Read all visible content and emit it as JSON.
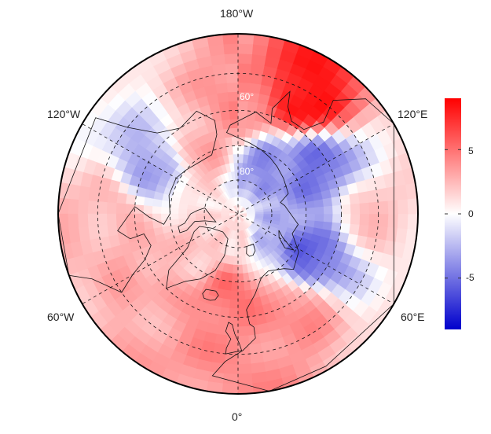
{
  "map": {
    "projection": "north-polar-stereographic",
    "outline_color": "#000000",
    "graticule_style": "dashed",
    "longitude_labels": {
      "top": "180°W",
      "bottom": "0°",
      "upper_left": "120°W",
      "upper_right": "120°E",
      "lower_left": "60°W",
      "lower_right": "60°E"
    },
    "latitude_labels": {
      "lat60": "60°",
      "lat80": "80°"
    }
  },
  "colorbar": {
    "colormap": "bwr",
    "min": -9,
    "max": 9,
    "ticks": [
      "5",
      "0",
      "-5"
    ],
    "tick_values": [
      5,
      0,
      -5
    ],
    "color_low": "#0000cc",
    "color_mid": "#ffffff",
    "color_high": "#ff0000"
  },
  "anomaly_pattern": [
    {
      "lat": 52,
      "lon": 150,
      "value": 8.5
    },
    {
      "lat": 60,
      "lon": 180,
      "value": 4
    },
    {
      "lat": 70,
      "lon": -150,
      "value": 3
    },
    {
      "lat": 64,
      "lon": 120,
      "value": -5
    },
    {
      "lat": 75,
      "lon": 150,
      "value": -4
    },
    {
      "lat": 66,
      "lon": 60,
      "value": -5.5
    },
    {
      "lat": 80,
      "lon": 60,
      "value": -3
    },
    {
      "lat": 62,
      "lon": -120,
      "value": -3
    },
    {
      "lat": 60,
      "lon": -60,
      "value": 3
    },
    {
      "lat": 72,
      "lon": -50,
      "value": 2
    },
    {
      "lat": 66,
      "lon": -5,
      "value": 5
    },
    {
      "lat": 58,
      "lon": 30,
      "value": 4
    },
    {
      "lat": 50,
      "lon": 0,
      "value": 4
    },
    {
      "lat": 85,
      "lon": 0,
      "value": 1.5
    },
    {
      "lat": 52,
      "lon": -90,
      "value": 2.5
    },
    {
      "lat": 52,
      "lon": 90,
      "value": 2
    }
  ]
}
